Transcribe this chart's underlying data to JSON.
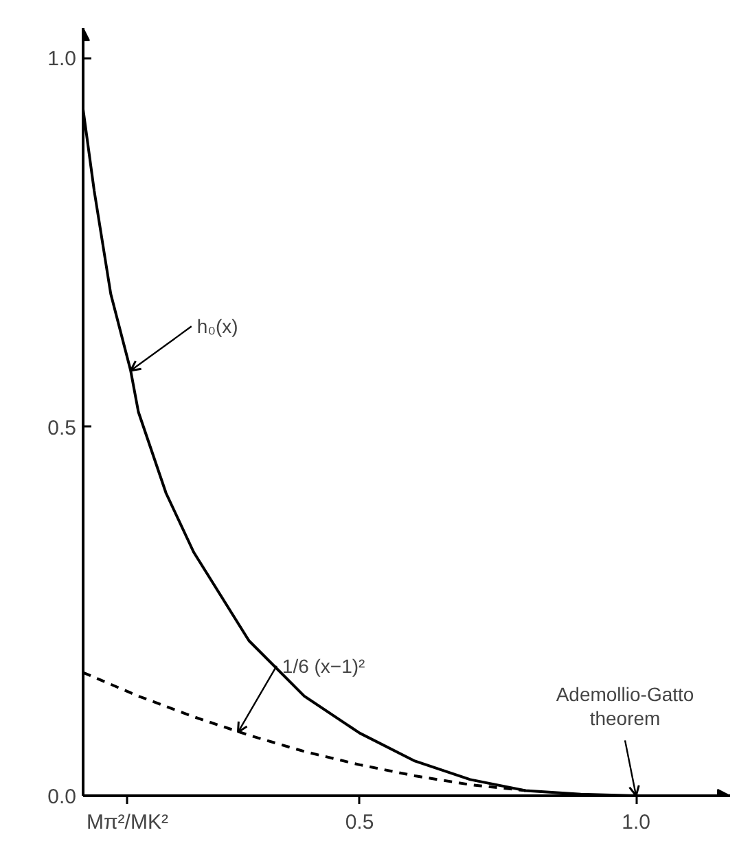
{
  "chart_data": {
    "type": "line",
    "xlim": [
      0,
      1.17
    ],
    "ylim": [
      0,
      1.04
    ],
    "xticks": [
      {
        "value": 0.08,
        "label": "Mπ²/MK²"
      },
      0.5,
      {
        "value": 1.0,
        "label": "1.0"
      }
    ],
    "yticks": [
      {
        "value": 0,
        "label": "0.0"
      },
      0.5,
      {
        "value": 1.0,
        "label": "1.0"
      }
    ],
    "grid": false,
    "series": [
      {
        "color": "#000000",
        "line_style": "solid",
        "x": [
          0,
          0.02,
          0.05,
          0.086,
          0.1,
          0.15,
          0.2,
          0.3,
          0.4,
          0.5,
          0.6,
          0.7,
          0.8,
          0.9,
          1.0,
          1.1
        ],
        "values": [
          0.93,
          0.82,
          0.68,
          0.576,
          0.52,
          0.41,
          0.33,
          0.21,
          0.135,
          0.085,
          0.047,
          0.022,
          0.007,
          0.002,
          0.0,
          0.0
        ]
      },
      {
        "color": "#000000",
        "line_style": "dashed",
        "x": [
          0,
          0.1,
          0.2,
          0.3,
          0.4,
          0.5,
          0.6,
          0.7,
          0.8
        ],
        "values": [
          0.167,
          0.135,
          0.107,
          0.082,
          0.06,
          0.042,
          0.027,
          0.015,
          0.007
        ]
      }
    ],
    "annotations": [
      {
        "text": "h₀(x)",
        "x": 0.086,
        "y": 0.576
      },
      {
        "text": "1/6 (x−1)²",
        "x": 0.28,
        "y": 0.086
      },
      {
        "text": "Ademollio-Gatto theorem",
        "x": 1.0,
        "y": 0.0
      }
    ]
  }
}
